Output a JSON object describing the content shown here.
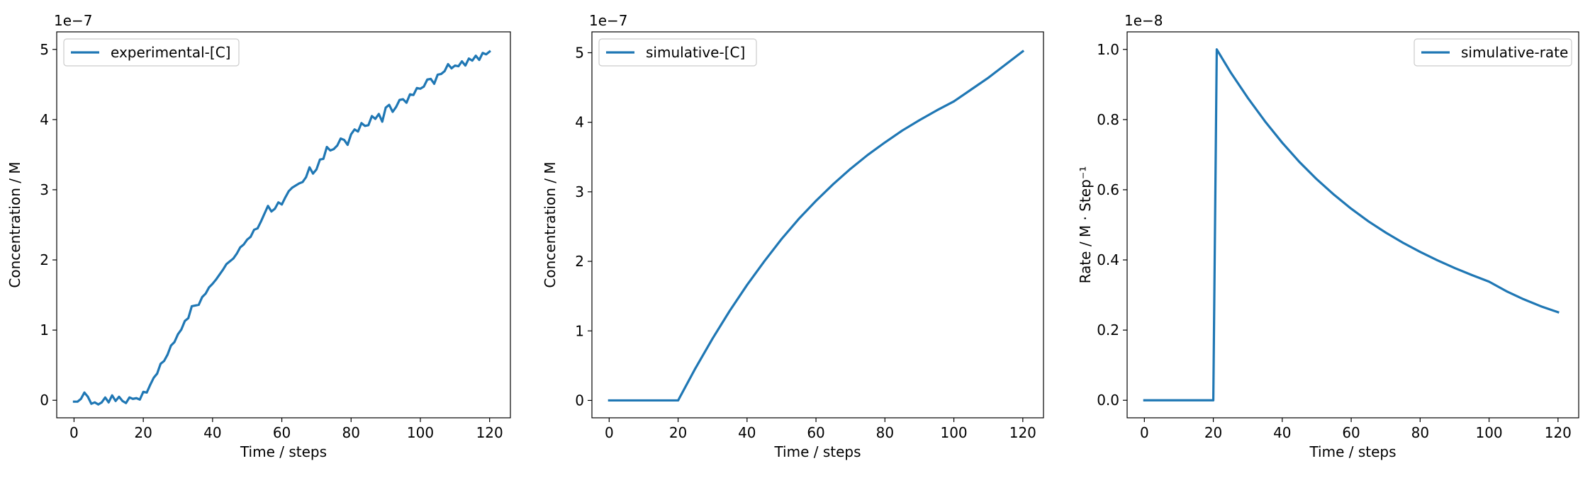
{
  "figure": {
    "background": "#ffffff",
    "line_color": "#1f77b4"
  },
  "chart_data": [
    {
      "type": "line",
      "xlabel": "Time / steps",
      "ylabel": "Concentration / M",
      "y_offset_label": "1e−7",
      "xlim": [
        -5,
        126
      ],
      "ylim": [
        -0.25,
        5.25
      ],
      "xticks": [
        0,
        20,
        40,
        60,
        80,
        100,
        120
      ],
      "yticks": [
        0,
        1,
        2,
        3,
        4,
        5
      ],
      "ytick_labels": [
        "0",
        "1",
        "2",
        "3",
        "4",
        "5"
      ],
      "legend_position": "upper-left",
      "series": [
        {
          "name": "experimental-[C]",
          "x": [
            0,
            1,
            2,
            3,
            4,
            5,
            6,
            7,
            8,
            9,
            10,
            11,
            12,
            13,
            14,
            15,
            16,
            17,
            18,
            19,
            20,
            21,
            22,
            23,
            24,
            25,
            26,
            27,
            28,
            29,
            30,
            31,
            32,
            33,
            34,
            35,
            36,
            37,
            38,
            39,
            40,
            41,
            42,
            43,
            44,
            45,
            46,
            47,
            48,
            49,
            50,
            51,
            52,
            53,
            54,
            55,
            56,
            57,
            58,
            59,
            60,
            61,
            62,
            63,
            64,
            65,
            66,
            67,
            68,
            69,
            70,
            71,
            72,
            73,
            74,
            75,
            76,
            77,
            78,
            79,
            80,
            81,
            82,
            83,
            84,
            85,
            86,
            87,
            88,
            89,
            90,
            91,
            92,
            93,
            94,
            95,
            96,
            97,
            98,
            99,
            100,
            101,
            102,
            103,
            104,
            105,
            106,
            107,
            108,
            109,
            110,
            111,
            112,
            113,
            114,
            115,
            116,
            117,
            118,
            119,
            120
          ],
          "y": [
            -0.02,
            -0.02,
            0.02,
            0.11,
            0.05,
            -0.05,
            -0.03,
            -0.06,
            -0.03,
            0.04,
            -0.03,
            0.07,
            -0.01,
            0.05,
            -0.01,
            -0.04,
            0.04,
            0.02,
            0.03,
            0.01,
            0.12,
            0.11,
            0.22,
            0.32,
            0.38,
            0.52,
            0.56,
            0.65,
            0.78,
            0.83,
            0.94,
            1.01,
            1.13,
            1.17,
            1.34,
            1.35,
            1.36,
            1.47,
            1.52,
            1.61,
            1.66,
            1.72,
            1.79,
            1.86,
            1.94,
            1.98,
            2.02,
            2.09,
            2.18,
            2.22,
            2.29,
            2.33,
            2.43,
            2.45,
            2.55,
            2.66,
            2.77,
            2.69,
            2.73,
            2.82,
            2.79,
            2.89,
            2.98,
            3.03,
            3.06,
            3.09,
            3.11,
            3.18,
            3.32,
            3.23,
            3.29,
            3.43,
            3.44,
            3.61,
            3.56,
            3.58,
            3.63,
            3.73,
            3.71,
            3.64,
            3.79,
            3.86,
            3.83,
            3.95,
            3.91,
            3.92,
            4.05,
            4.01,
            4.08,
            3.97,
            4.17,
            4.21,
            4.11,
            4.18,
            4.28,
            4.29,
            4.24,
            4.36,
            4.35,
            4.45,
            4.44,
            4.47,
            4.57,
            4.58,
            4.51,
            4.64,
            4.65,
            4.69,
            4.79,
            4.73,
            4.77,
            4.76,
            4.83,
            4.77,
            4.87,
            4.84,
            4.91,
            4.85,
            4.95,
            4.93,
            4.97
          ]
        }
      ]
    },
    {
      "type": "line",
      "xlabel": "Time / steps",
      "ylabel": "Concentration / M",
      "y_offset_label": "1e−7",
      "xlim": [
        -5,
        126
      ],
      "ylim": [
        -0.25,
        5.3
      ],
      "xticks": [
        0,
        20,
        40,
        60,
        80,
        100,
        120
      ],
      "yticks": [
        0,
        1,
        2,
        3,
        4,
        5
      ],
      "ytick_labels": [
        "0",
        "1",
        "2",
        "3",
        "4",
        "5"
      ],
      "legend_position": "upper-left",
      "series": [
        {
          "name": "simulative-[C]",
          "x": [
            0,
            20,
            25,
            30,
            35,
            40,
            45,
            50,
            55,
            60,
            65,
            70,
            75,
            80,
            85,
            90,
            95,
            100,
            105,
            110,
            115,
            120
          ],
          "y": [
            0,
            0,
            0.46,
            0.89,
            1.29,
            1.66,
            2.0,
            2.32,
            2.61,
            2.87,
            3.11,
            3.33,
            3.53,
            3.71,
            3.88,
            4.03,
            4.17,
            4.3,
            4.47,
            4.64,
            4.83,
            5.02
          ]
        }
      ]
    },
    {
      "type": "line",
      "xlabel": "Time / steps",
      "ylabel": "Rate / M · Step⁻¹",
      "y_offset_label": "1e−8",
      "xlim": [
        -5,
        126
      ],
      "ylim": [
        -0.05,
        1.05
      ],
      "xticks": [
        0,
        20,
        40,
        60,
        80,
        100,
        120
      ],
      "yticks": [
        0.0,
        0.2,
        0.4,
        0.6,
        0.8,
        1.0
      ],
      "ytick_labels": [
        "0.0",
        "0.2",
        "0.4",
        "0.6",
        "0.8",
        "1.0"
      ],
      "legend_position": "upper-right",
      "series": [
        {
          "name": "simulative-rate",
          "x": [
            0,
            20,
            21,
            25,
            30,
            35,
            40,
            45,
            50,
            55,
            60,
            65,
            70,
            75,
            80,
            85,
            90,
            95,
            100,
            105,
            110,
            115,
            120
          ],
          "y": [
            0,
            0,
            1.0,
            0.935,
            0.862,
            0.795,
            0.734,
            0.679,
            0.63,
            0.586,
            0.546,
            0.51,
            0.478,
            0.449,
            0.423,
            0.399,
            0.377,
            0.357,
            0.338,
            0.311,
            0.288,
            0.268,
            0.251
          ]
        }
      ]
    }
  ]
}
